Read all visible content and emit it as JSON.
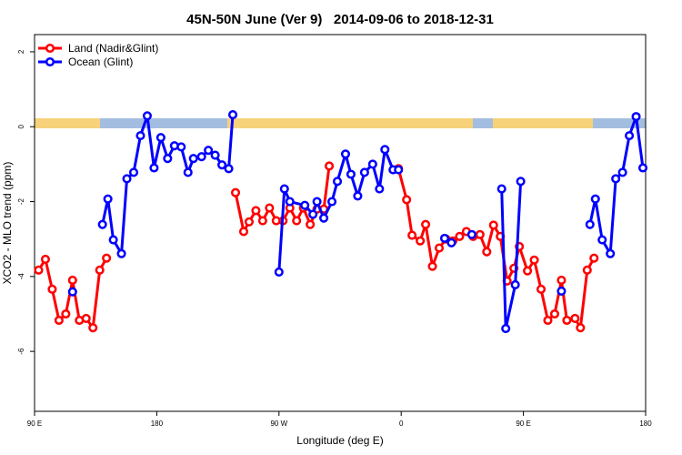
{
  "chart_data": {
    "type": "line",
    "title": "45N-50N June (Ver 9)   2014-09-06 to 2018-12-31",
    "x_label": "Longitude (deg E)",
    "y_label": "XCO2 - MLO trend (ppm)",
    "xlim": [
      90,
      540
    ],
    "xticks": [
      {
        "value": 90,
        "label": "90 E"
      },
      180,
      {
        "value": 270,
        "label": "90 W"
      },
      {
        "value": 360,
        "label": "0"
      },
      {
        "value": 450,
        "label": "90 E"
      },
      {
        "value": 540,
        "label": "180"
      }
    ],
    "ylim": [
      -7.6,
      2.46
    ],
    "yticks": [
      2,
      0,
      -2,
      -4,
      -6
    ],
    "legend": "top-left",
    "series": [
      {
        "name": "Land (Nadir&Glint)",
        "color": "#ff0000",
        "x": [
          93,
          98,
          103,
          108,
          113,
          118,
          123,
          128,
          133,
          138,
          143,
          null,
          238,
          244,
          248,
          253,
          258,
          263,
          268,
          273,
          278,
          283,
          288,
          293,
          298,
          303,
          307,
          null,
          358,
          364,
          368,
          374,
          378,
          383,
          388,
          393,
          398,
          403,
          408,
          413,
          418,
          423,
          428,
          433,
          438,
          443,
          447,
          453,
          458,
          463,
          468,
          473,
          478,
          482,
          488,
          492,
          497,
          502
        ],
        "values": [
          -3.83,
          -3.54,
          -4.34,
          -5.17,
          -5.0,
          -4.1,
          -5.17,
          -5.12,
          -5.37,
          -3.83,
          -3.51,
          null,
          -1.76,
          -2.8,
          -2.54,
          -2.24,
          -2.51,
          -2.17,
          -2.51,
          -2.51,
          -2.17,
          -2.51,
          -2.17,
          -2.61,
          -2.2,
          -2.2,
          -1.05,
          null,
          -1.12,
          -1.95,
          -2.9,
          -3.05,
          -2.61,
          -3.73,
          -3.24,
          -3.0,
          -3.05,
          -2.93,
          -2.8,
          -2.93,
          -2.88,
          -3.34,
          -2.63,
          -2.93,
          -4.12,
          -3.78,
          -3.2,
          -3.85,
          -3.56,
          -4.34,
          -5.17,
          -5.0,
          -4.1,
          -5.17,
          -5.12,
          -5.37,
          -3.83,
          -3.51
        ]
      },
      {
        "name": "Ocean (Glint)",
        "color": "#0000ff",
        "x": [
          118,
          null,
          140,
          144,
          148,
          154,
          158,
          163,
          168,
          173,
          178,
          183,
          188,
          193,
          198,
          203,
          207,
          213,
          218,
          223,
          228,
          233,
          236,
          null,
          270,
          274,
          278,
          289,
          295,
          298,
          303,
          309,
          313,
          319,
          323,
          328,
          333,
          339,
          344,
          348,
          354,
          358,
          null,
          392,
          397,
          null,
          412,
          null,
          434,
          437,
          444,
          448,
          null,
          478,
          null,
          499,
          503,
          508,
          514,
          518,
          523,
          528,
          533,
          538
        ],
        "values": [
          -4.41,
          null,
          -2.61,
          -1.93,
          -3.02,
          -3.39,
          -1.39,
          -1.22,
          -0.24,
          0.29,
          -1.1,
          -0.29,
          -0.85,
          -0.51,
          -0.54,
          -1.22,
          -0.85,
          -0.8,
          -0.63,
          -0.76,
          -1.02,
          -1.12,
          0.32,
          null,
          -3.88,
          -1.66,
          -2.0,
          -2.1,
          -2.34,
          -2.0,
          -2.44,
          -2.0,
          -1.46,
          -0.73,
          -1.27,
          -1.85,
          -1.22,
          -1.0,
          -1.66,
          -0.61,
          -1.15,
          -1.15,
          null,
          -2.98,
          -3.1,
          null,
          -2.88,
          null,
          -1.66,
          -5.39,
          -4.22,
          -1.46,
          null,
          -4.39,
          null,
          -2.61,
          -1.93,
          -3.02,
          -3.39,
          -1.39,
          -1.22,
          -0.24,
          0.27,
          -1.1
        ]
      }
    ]
  }
}
